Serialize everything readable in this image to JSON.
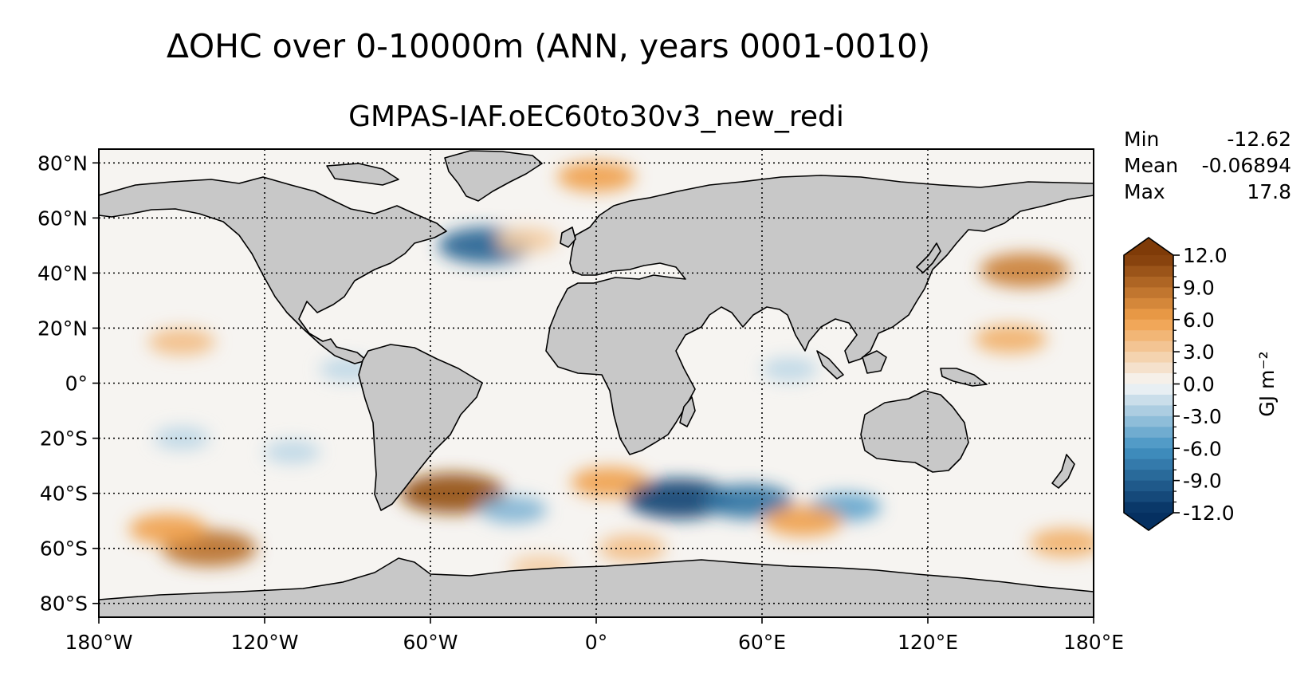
{
  "title": "ΔOHC over 0-10000m (ANN, years 0001-0010)",
  "subtitle": "GMPAS-IAF.oEC60to30v3_new_redi",
  "stats": [
    {
      "label": "Min",
      "value": "-12.62"
    },
    {
      "label": "Mean",
      "value": "-0.06894"
    },
    {
      "label": "Max",
      "value": "17.8"
    }
  ],
  "chart_data": {
    "type": "heatmap",
    "projection": "PlateCarree",
    "title": "ΔOHC over 0-10000m (ANN, years 0001-0010)",
    "subtitle": "GMPAS-IAF.oEC60to30v3_new_redi",
    "xlim": [
      -180,
      180
    ],
    "ylim": [
      -85,
      85
    ],
    "x_ticks": [
      {
        "value": -180,
        "label": "180°W"
      },
      {
        "value": -120,
        "label": "120°W"
      },
      {
        "value": -60,
        "label": "60°W"
      },
      {
        "value": 0,
        "label": "0°"
      },
      {
        "value": 60,
        "label": "60°E"
      },
      {
        "value": 120,
        "label": "120°E"
      },
      {
        "value": 180,
        "label": "180°E"
      }
    ],
    "y_ticks": [
      {
        "value": 80,
        "label": "80°N"
      },
      {
        "value": 60,
        "label": "60°N"
      },
      {
        "value": 40,
        "label": "40°N"
      },
      {
        "value": 20,
        "label": "20°N"
      },
      {
        "value": 0,
        "label": "0°"
      },
      {
        "value": -20,
        "label": "20°S"
      },
      {
        "value": -40,
        "label": "40°S"
      },
      {
        "value": -60,
        "label": "60°S"
      },
      {
        "value": -80,
        "label": "80°S"
      }
    ],
    "grid": true,
    "colorbar": {
      "label": "GJ m⁻²",
      "vmin": -12.0,
      "vmax": 12.0,
      "extend": "both",
      "ticks": [
        {
          "value": 12,
          "label": "12.0"
        },
        {
          "value": 9,
          "label": "9.0"
        },
        {
          "value": 6,
          "label": "6.0"
        },
        {
          "value": 3,
          "label": "3.0"
        },
        {
          "value": 0,
          "label": "0.0"
        },
        {
          "value": -3,
          "label": "-3.0"
        },
        {
          "value": -6,
          "label": "-6.0"
        },
        {
          "value": -9,
          "label": "-9.0"
        },
        {
          "value": -12,
          "label": "-12.0"
        }
      ],
      "colors": {
        "neg_end": "#053061",
        "neg_mid": "#4393c3",
        "neutral": "#f7f7f7",
        "pos_mid": "#f0a04b",
        "pos_end": "#7f3b08"
      }
    },
    "land_color": "#c8c8c8",
    "ocean_color": "#f6f4f1",
    "anomalies": [
      {
        "lon": -150,
        "lat": 15,
        "value": 4
      },
      {
        "lon": -140,
        "lat": -60,
        "value": 9
      },
      {
        "lon": -155,
        "lat": -53,
        "value": 6
      },
      {
        "lon": -52,
        "lat": -40,
        "value": 11
      },
      {
        "lon": 5,
        "lat": -36,
        "value": 6
      },
      {
        "lon": 30,
        "lat": -42,
        "value": -11
      },
      {
        "lon": 55,
        "lat": -43,
        "value": -8
      },
      {
        "lon": 90,
        "lat": -45,
        "value": -5
      },
      {
        "lon": -30,
        "lat": -46,
        "value": -4
      },
      {
        "lon": -40,
        "lat": 50,
        "value": -9
      },
      {
        "lon": 0,
        "lat": 75,
        "value": 6
      },
      {
        "lon": -25,
        "lat": 52,
        "value": 3
      },
      {
        "lon": 155,
        "lat": 41,
        "value": 8
      },
      {
        "lon": 150,
        "lat": 16,
        "value": 5
      },
      {
        "lon": 170,
        "lat": -58,
        "value": 5
      },
      {
        "lon": -20,
        "lat": -67,
        "value": 3
      },
      {
        "lon": 13,
        "lat": -60,
        "value": 4
      },
      {
        "lon": 75,
        "lat": -50,
        "value": 6
      },
      {
        "lon": -90,
        "lat": 5,
        "value": -2
      },
      {
        "lon": -110,
        "lat": -25,
        "value": -2
      },
      {
        "lon": 70,
        "lat": 5,
        "value": -2
      },
      {
        "lon": -150,
        "lat": -20,
        "value": -2
      }
    ]
  }
}
